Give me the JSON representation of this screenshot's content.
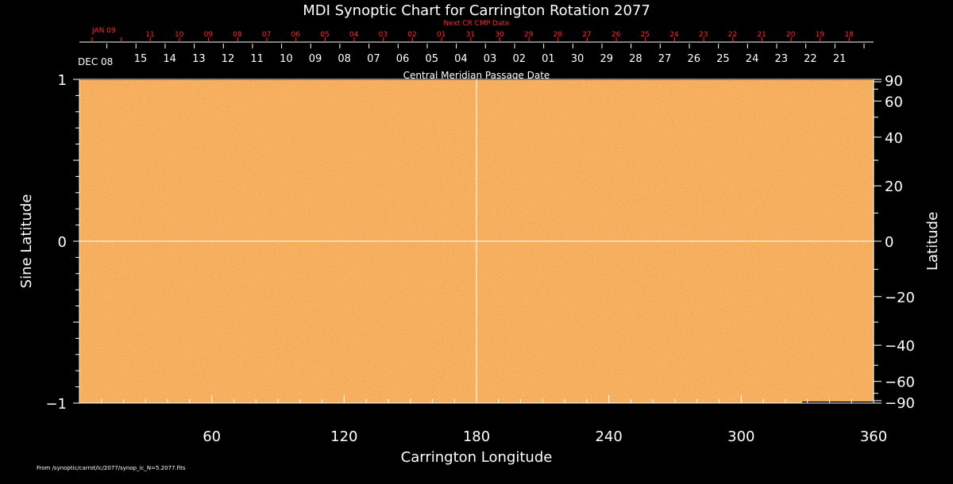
{
  "chart_data": {
    "type": "heatmap",
    "title": "MDI Synoptic Chart for Carrington Rotation 2077",
    "xlabel": "Carrington Longitude",
    "ylabel_left": "Sine Latitude",
    "ylabel_right": "Latitude",
    "xlim": [
      0,
      360
    ],
    "ylim": [
      -1,
      1
    ],
    "x_ticks": [
      "60",
      "120",
      "180",
      "240",
      "300",
      "360"
    ],
    "y_ticks_left": [
      "1",
      "0",
      "−1"
    ],
    "y_ticks_right": [
      "90",
      "60",
      "40",
      "20",
      "0",
      "−20",
      "−40",
      "−60",
      "−90"
    ],
    "top_axis_label": "Central Meridian Passage Date",
    "top_axis_start": "DEC 08",
    "top_axis_dates": [
      "15",
      "14",
      "13",
      "12",
      "11",
      "10",
      "09",
      "08",
      "07",
      "06",
      "05",
      "04",
      "03",
      "02",
      "01",
      "30",
      "29",
      "28",
      "27",
      "26",
      "25",
      "24",
      "23",
      "22",
      "21"
    ],
    "next_cr_label": "Next CR CMP Date",
    "next_cr_start": "JAN 09",
    "next_cr_dates": [
      "11",
      "10",
      "09",
      "08",
      "07",
      "06",
      "05",
      "04",
      "03",
      "02",
      "01",
      "31",
      "30",
      "29",
      "28",
      "27",
      "26",
      "25",
      "24",
      "23",
      "22",
      "21",
      "20",
      "19",
      "18"
    ],
    "footer": "From /synoptic/carrot/ic/2077/synop_ic_N=5.2077.fits",
    "colors": {
      "field": "#f5a54a",
      "grid": "#ffffff",
      "next_cr": "#ff2a2a",
      "background": "#000000"
    }
  }
}
